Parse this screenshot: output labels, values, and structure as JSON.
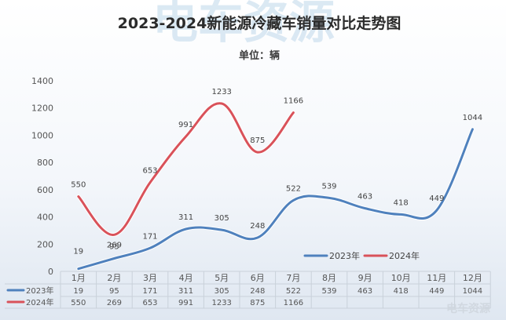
{
  "chart_data": {
    "type": "line",
    "title": "2023-2024新能源冷藏车销量对比走势图",
    "subtitle": "单位：辆",
    "categories": [
      "1月",
      "2月",
      "3月",
      "4月",
      "5月",
      "6月",
      "7月",
      "8月",
      "9月",
      "10月",
      "11月",
      "12月"
    ],
    "ylim": [
      0,
      1400
    ],
    "yticks": [
      0,
      200,
      400,
      600,
      800,
      1000,
      1200,
      1400
    ],
    "legend_position": "bottom-right",
    "series": [
      {
        "name": "2023年",
        "color": "#4f81bd",
        "values": [
          19,
          95,
          171,
          311,
          305,
          248,
          522,
          539,
          463,
          418,
          449,
          1044
        ]
      },
      {
        "name": "2024年",
        "color": "#d9525a",
        "values": [
          550,
          269,
          653,
          991,
          1233,
          875,
          1166,
          null,
          null,
          null,
          null,
          null
        ]
      }
    ]
  },
  "watermark": "电车资源",
  "watermark_small": "电车资源"
}
